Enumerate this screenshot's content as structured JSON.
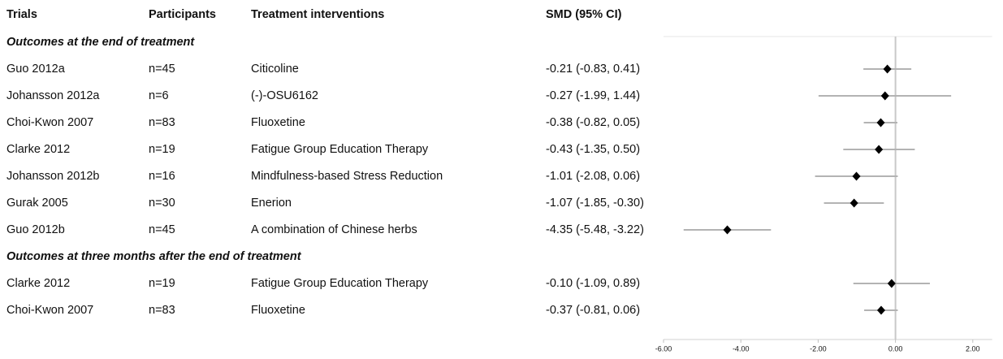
{
  "chart_data": {
    "type": "forest",
    "columns": [
      "Trials",
      "Participants",
      "Treatment interventions",
      "SMD (95% CI)"
    ],
    "sections": [
      {
        "title": "Outcomes at the end of treatment",
        "trials": [
          "Guo 2012a",
          "Johansson 2012a",
          "Choi-Kwon 2007",
          "Clarke 2012",
          "Johansson 2012b",
          "Gurak 2005",
          "Guo 2012b"
        ],
        "participants": [
          "n=45",
          "n=6",
          "n=83",
          "n=19",
          "n=16",
          "n=30",
          "n=45"
        ],
        "interventions": [
          "Citicoline",
          "(-)-OSU6162",
          "Fluoxetine",
          "Fatigue Group Education Therapy",
          "Mindfulness-based Stress Reduction",
          "Enerion",
          "A combination of Chinese herbs"
        ],
        "values": [
          -0.21,
          -0.27,
          -0.38,
          -0.43,
          -1.01,
          -1.07,
          -4.35
        ],
        "lower": [
          -0.83,
          -1.99,
          -0.82,
          -1.35,
          -2.08,
          -1.85,
          -5.48
        ],
        "upper": [
          0.41,
          1.44,
          0.05,
          0.5,
          0.06,
          -0.3,
          -3.22
        ],
        "value_labels": [
          "-0.21 (-0.83, 0.41)",
          "-0.27 (-1.99, 1.44)",
          "-0.38 (-0.82, 0.05)",
          "-0.43 (-1.35, 0.50)",
          "-1.01 (-2.08, 0.06)",
          "-1.07 (-1.85, -0.30)",
          "-4.35 (-5.48, -3.22)"
        ]
      },
      {
        "title": "Outcomes at three months after the end of treatment",
        "trials": [
          "Clarke 2012",
          "Choi-Kwon 2007"
        ],
        "participants": [
          "n=19",
          "n=83"
        ],
        "interventions": [
          "Fatigue Group Education Therapy",
          "Fluoxetine"
        ],
        "values": [
          -0.1,
          -0.37
        ],
        "lower": [
          -1.09,
          -0.81
        ],
        "upper": [
          0.89,
          0.06
        ],
        "value_labels": [
          "-0.10 (-1.09, 0.89)",
          "-0.37 (-0.81, 0.06)"
        ]
      }
    ],
    "xlim": [
      -6,
      2.5
    ],
    "xticks": [
      {
        "value": -6,
        "label": "-6.00"
      },
      {
        "value": -4,
        "label": "-4.00"
      },
      {
        "value": -2,
        "label": "-2.00"
      },
      {
        "value": 0,
        "label": "0.00"
      },
      {
        "value": 2,
        "label": "2.00"
      }
    ],
    "reference_line": 0,
    "marker_color": "#000000",
    "ci_color": "#b3b3b3"
  }
}
